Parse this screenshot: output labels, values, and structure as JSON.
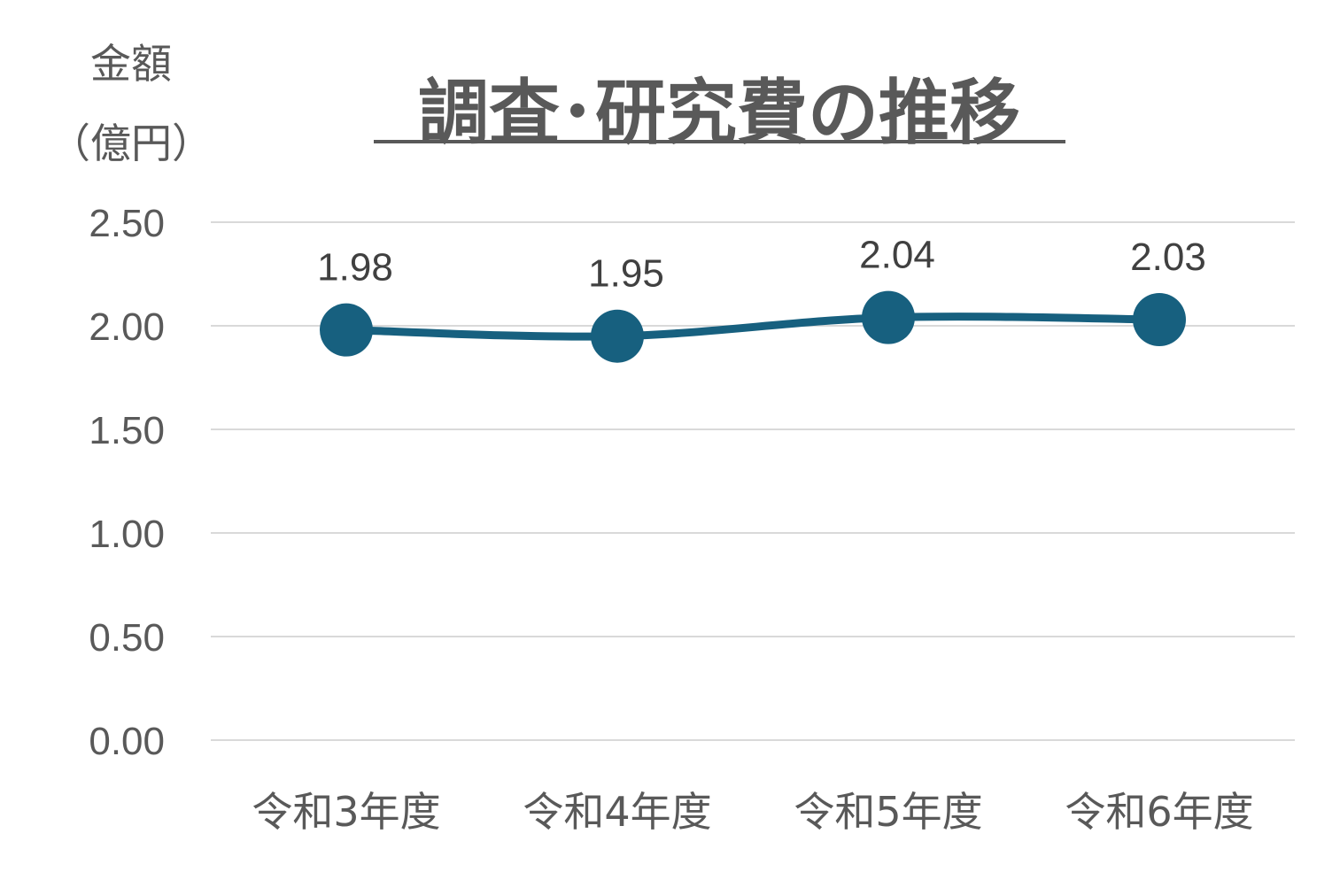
{
  "chart_data": {
    "type": "line",
    "title": "調査･研究費の推移",
    "ylabel": [
      "金額",
      "（億円）"
    ],
    "xlabel": "",
    "categories": [
      "令和3年度",
      "令和4年度",
      "令和5年度",
      "令和6年度"
    ],
    "series": [
      {
        "values": [
          1.98,
          1.95,
          2.04,
          2.03
        ],
        "data_labels": [
          "1.98",
          "1.95",
          "2.04",
          "2.03"
        ]
      }
    ],
    "ylim": [
      0,
      2.5
    ],
    "yticks": [
      "0.00",
      "0.50",
      "1.00",
      "1.50",
      "2.00",
      "2.50"
    ],
    "grid": true,
    "legend": "none",
    "colors": {
      "series": "#17607f",
      "grid": "#d9d9d9",
      "text": "#595959"
    }
  }
}
